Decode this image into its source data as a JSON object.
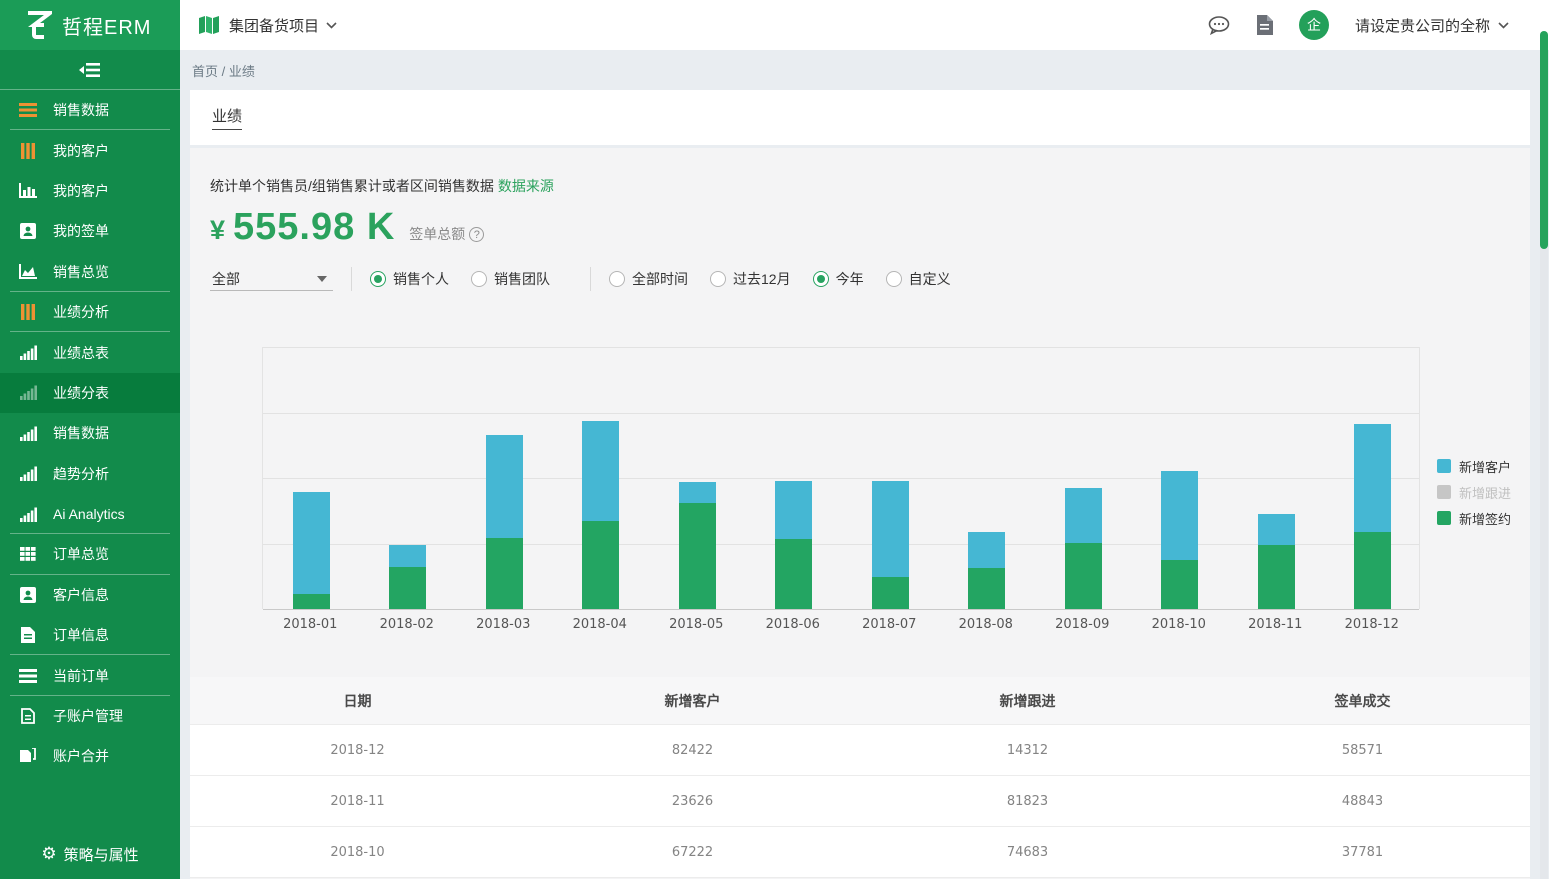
{
  "app": {
    "logo_text": "哲程ERM"
  },
  "colors": {
    "sidebar_green": "#128b4b",
    "sidebar_header_green": "#1b9c57",
    "sidebar_active": "#077c3d",
    "accent_green": "#2ba25d",
    "bar_blue": "#45b7d3",
    "bar_green": "#23a562",
    "legend_gray": "#c6c6c6",
    "icon_orange": "#ee9233",
    "scroll_thumb": "#25a35c"
  },
  "sidebar": {
    "items": [
      {
        "label": "销售数据",
        "icon": "menu-lines-icon",
        "icon_color": "#ee9233",
        "active": false,
        "divider_after": true
      },
      {
        "label": "我的客户",
        "icon": "vertical-bars-icon",
        "icon_color": "#ee9233",
        "active": false,
        "divider_after": false
      },
      {
        "label": "我的客户",
        "icon": "bar-chart-frame-icon",
        "icon_color": "#ffffff",
        "active": false,
        "divider_after": false
      },
      {
        "label": "我的签单",
        "icon": "person-badge-icon",
        "icon_color": "#ffffff",
        "active": false,
        "divider_after": false
      },
      {
        "label": "销售总览",
        "icon": "area-chart-icon",
        "icon_color": "#ffffff",
        "active": false,
        "divider_after": true
      },
      {
        "label": "业绩分析",
        "icon": "vertical-bars-icon",
        "icon_color": "#ee9233",
        "active": false,
        "divider_after": true
      },
      {
        "label": "业绩总表",
        "icon": "ascending-bars-icon",
        "icon_color": "#ffffff",
        "active": false,
        "divider_after": false
      },
      {
        "label": "业绩分表",
        "icon": "ascending-bars-icon",
        "icon_color": "#ffffff",
        "active": true,
        "divider_after": false
      },
      {
        "label": "销售数据",
        "icon": "ascending-bars-icon",
        "icon_color": "#ffffff",
        "active": false,
        "divider_after": false
      },
      {
        "label": "趋势分析",
        "icon": "ascending-bars-icon",
        "icon_color": "#ffffff",
        "active": false,
        "divider_after": false
      },
      {
        "label": "Ai Analytics",
        "icon": "ascending-bars-icon",
        "icon_color": "#ffffff",
        "active": false,
        "divider_after": true
      },
      {
        "label": "订单总览",
        "icon": "grid-icon",
        "icon_color": "#ffffff",
        "active": false,
        "divider_after": true
      },
      {
        "label": "客户信息",
        "icon": "person-badge-icon",
        "icon_color": "#ffffff",
        "active": false,
        "divider_after": false
      },
      {
        "label": "订单信息",
        "icon": "document-icon",
        "icon_color": "#ffffff",
        "active": false,
        "divider_after": true
      },
      {
        "label": "当前订单",
        "icon": "menu-lines-icon",
        "icon_color": "#ffffff",
        "active": false,
        "divider_after": true
      },
      {
        "label": "子账户管理",
        "icon": "document-outline-icon",
        "icon_color": "#ffffff",
        "active": false,
        "divider_after": false
      },
      {
        "label": "账户合并",
        "icon": "copy-icon",
        "icon_color": "#ffffff",
        "active": false,
        "divider_after": false
      }
    ],
    "footer": {
      "label": "策略与属性",
      "icon": "gear-icon",
      "gear_glyph": "⚙"
    }
  },
  "header": {
    "project": {
      "label": "集团备货项目",
      "icon": "map-icon"
    },
    "right": {
      "avatar_text": "企",
      "company_name": "请设定贵公司的全称"
    }
  },
  "breadcrumb": {
    "home": "首页",
    "separator": "/",
    "current": "业绩"
  },
  "page": {
    "title": "业绩"
  },
  "summary": {
    "description": "统计单个销售员/组销售累计或者区间销售数据",
    "data_source_link": "数据来源",
    "currency_symbol": "¥",
    "amount": "555.98 K",
    "amount_label": "签单总额",
    "help_glyph": "?"
  },
  "filters": {
    "scope_select": {
      "value": "全部"
    },
    "group1": [
      {
        "label": "销售个人",
        "selected": true
      },
      {
        "label": "销售团队",
        "selected": false
      }
    ],
    "group2": [
      {
        "label": "全部时间",
        "selected": false
      },
      {
        "label": "过去12月",
        "selected": false
      },
      {
        "label": "今年",
        "selected": true
      },
      {
        "label": "自定义",
        "selected": false
      }
    ]
  },
  "chart_data": {
    "type": "bar",
    "stacked": true,
    "title": "",
    "xlabel": "",
    "ylabel": "",
    "categories": [
      "2018-01",
      "2018-02",
      "2018-03",
      "2018-04",
      "2018-05",
      "2018-06",
      "2018-07",
      "2018-08",
      "2018-09",
      "2018-10",
      "2018-11",
      "2018-12"
    ],
    "series": [
      {
        "name": "新增签约",
        "color": "#23a562",
        "values": [
          11500,
          32000,
          54000,
          67000,
          81300,
          53500,
          24400,
          31500,
          50300,
          37781,
          48843,
          58571
        ]
      },
      {
        "name": "新增客户",
        "color": "#45b7d3",
        "values": [
          77500,
          17000,
          79000,
          76500,
          15300,
          44000,
          73000,
          27000,
          42400,
          67222,
          23626,
          82422
        ]
      }
    ],
    "legend": [
      {
        "label": "新增客户",
        "color": "#45b7d3",
        "enabled": true
      },
      {
        "label": "新增跟进",
        "color": "#c6c6c6",
        "enabled": false
      },
      {
        "label": "新增签约",
        "color": "#23a562",
        "enabled": true
      }
    ],
    "ylim": [
      0,
      200000
    ],
    "yticks": [
      0,
      50000,
      100000,
      150000,
      200000
    ],
    "grid": true,
    "legend_position": "right"
  },
  "table": {
    "columns": [
      "日期",
      "新增客户",
      "新增跟进",
      "签单成交"
    ],
    "rows": [
      [
        "2018-12",
        "82422",
        "14312",
        "58571"
      ],
      [
        "2018-11",
        "23626",
        "81823",
        "48843"
      ],
      [
        "2018-10",
        "67222",
        "74683",
        "37781"
      ]
    ]
  }
}
